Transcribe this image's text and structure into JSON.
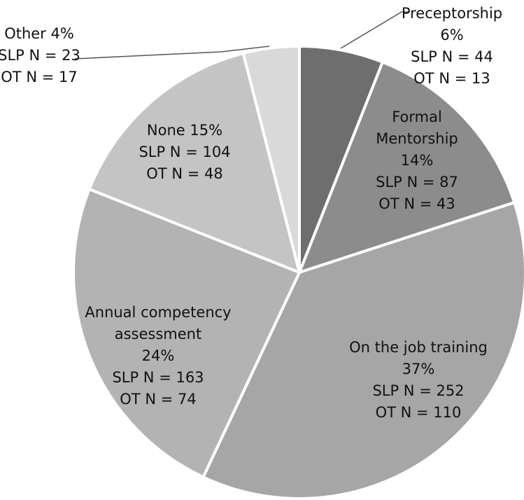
{
  "chart_data": {
    "type": "pie",
    "title": "",
    "slices": [
      {
        "name": "Preceptorship",
        "percent": 6,
        "label_lines": [
          "Preceptorship",
          "6%",
          "SLP N = 44",
          "OT N = 13"
        ],
        "slp_n": 44,
        "ot_n": 13,
        "color": "#6e6e6e"
      },
      {
        "name": "Formal Mentorship",
        "percent": 14,
        "label_lines": [
          "Formal",
          "Mentorship",
          "14%",
          "SLP N = 87",
          "OT N = 43"
        ],
        "slp_n": 87,
        "ot_n": 43,
        "color": "#8c8c8c"
      },
      {
        "name": "On the job training",
        "percent": 37,
        "label_lines": [
          "On the job training",
          "37%",
          "SLP N = 252",
          "OT N = 110"
        ],
        "slp_n": 252,
        "ot_n": 110,
        "color": "#a6a6a6"
      },
      {
        "name": "Annual competency assessment",
        "percent": 24,
        "label_lines": [
          "Annual competency",
          "assessment",
          "24%",
          "SLP N = 163",
          "OT N = 74"
        ],
        "slp_n": 163,
        "ot_n": 74,
        "color": "#b3b3b3"
      },
      {
        "name": "None",
        "percent": 15,
        "label_lines": [
          "None 15%",
          "SLP N = 104",
          "OT N = 48"
        ],
        "slp_n": 104,
        "ot_n": 48,
        "color": "#c4c4c4"
      },
      {
        "name": "Other",
        "percent": 4,
        "label_lines": [
          "Other 4%",
          "SLP N = 23",
          "OT N = 17"
        ],
        "slp_n": 23,
        "ot_n": 17,
        "color": "#d9d9d9"
      }
    ]
  }
}
